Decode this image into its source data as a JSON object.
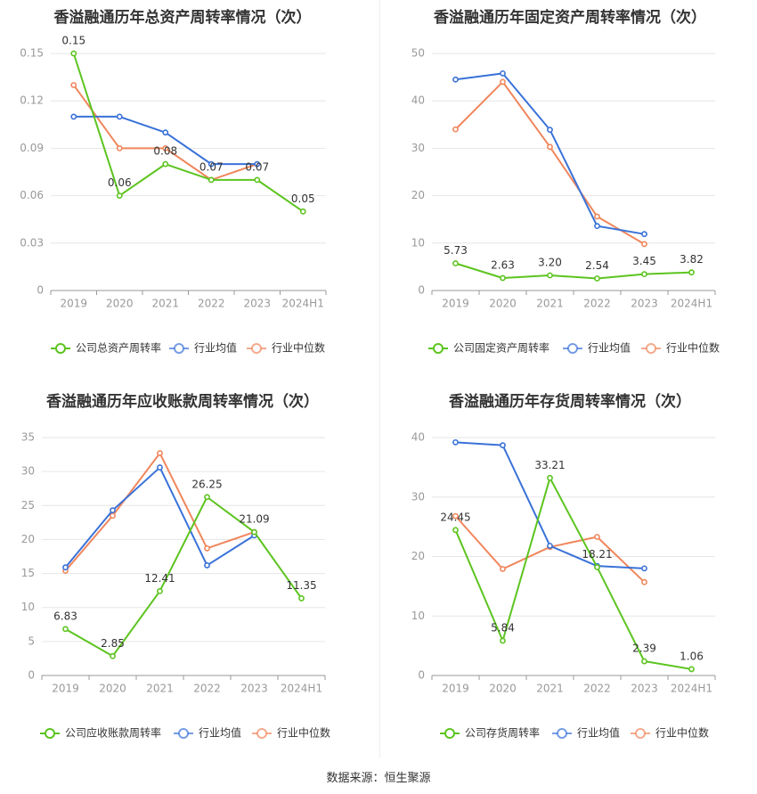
{
  "source": "数据来源：恒生聚源",
  "colors": {
    "company": "#5cc41f",
    "avg": "#3a72d8",
    "median": "#f0865c",
    "axis_text": "#999999",
    "grid": "#e6e6e6",
    "title": "#333333"
  },
  "chart_data": [
    {
      "type": "line",
      "title": "香溢融通历年总资产周转率情况（次）",
      "categories": [
        "2019",
        "2020",
        "2021",
        "2022",
        "2023",
        "2024H1"
      ],
      "ylim": [
        0,
        0.15
      ],
      "yticks": [
        "0",
        "0.03",
        "0.06",
        "0.09",
        "0.12",
        "0.15"
      ],
      "tick_values": [
        0,
        0.03,
        0.06,
        0.09,
        0.12,
        0.15
      ],
      "series": [
        {
          "name": "公司总资产周转率",
          "values": [
            0.15,
            0.06,
            0.08,
            0.07,
            0.07,
            0.05
          ],
          "labels": [
            "0.15",
            "0.06",
            "0.08",
            "0.07",
            "0.07",
            "0.05"
          ]
        },
        {
          "name": "行业均值",
          "values": [
            0.11,
            0.11,
            0.1,
            0.08,
            0.08,
            null
          ]
        },
        {
          "name": "行业中位数",
          "values": [
            0.13,
            0.09,
            0.09,
            0.07,
            0.08,
            null
          ]
        }
      ]
    },
    {
      "type": "line",
      "title": "香溢融通历年固定资产周转率情况（次）",
      "categories": [
        "2019",
        "2020",
        "2021",
        "2022",
        "2023",
        "2024H1"
      ],
      "ylim": [
        0,
        50
      ],
      "yticks": [
        "0",
        "10",
        "20",
        "30",
        "40",
        "50"
      ],
      "tick_values": [
        0,
        10,
        20,
        30,
        40,
        50
      ],
      "series": [
        {
          "name": "公司固定资产周转率",
          "values": [
            5.73,
            2.63,
            3.2,
            2.54,
            3.45,
            3.82
          ],
          "labels": [
            "5.73",
            "2.63",
            "3.20",
            "2.54",
            "3.45",
            "3.82"
          ]
        },
        {
          "name": "行业均值",
          "values": [
            44.5,
            45.8,
            33.9,
            13.6,
            11.9,
            null
          ]
        },
        {
          "name": "行业中位数",
          "values": [
            34.0,
            44.0,
            30.3,
            15.6,
            9.8,
            null
          ]
        }
      ]
    },
    {
      "type": "line",
      "title": "香溢融通历年应收账款周转率情况（次）",
      "categories": [
        "2019",
        "2020",
        "2021",
        "2022",
        "2023",
        "2024H1"
      ],
      "ylim": [
        0,
        35
      ],
      "yticks": [
        "0",
        "5",
        "10",
        "15",
        "20",
        "25",
        "30",
        "35"
      ],
      "tick_values": [
        0,
        5,
        10,
        15,
        20,
        25,
        30,
        35
      ],
      "series": [
        {
          "name": "公司应收账款周转率",
          "values": [
            6.83,
            2.85,
            12.41,
            26.25,
            21.09,
            11.35
          ],
          "labels": [
            "6.83",
            "2.85",
            "12.41",
            "26.25",
            "21.09",
            "11.35"
          ]
        },
        {
          "name": "行业均值",
          "values": [
            15.9,
            24.3,
            30.6,
            16.2,
            20.6,
            null
          ]
        },
        {
          "name": "行业中位数",
          "values": [
            15.4,
            23.5,
            32.7,
            18.7,
            21.1,
            null
          ]
        }
      ]
    },
    {
      "type": "line",
      "title": "香溢融通历年存货周转率情况（次）",
      "categories": [
        "2019",
        "2020",
        "2021",
        "2022",
        "2023",
        "2024H1"
      ],
      "ylim": [
        0,
        40
      ],
      "yticks": [
        "0",
        "10",
        "20",
        "30",
        "40"
      ],
      "tick_values": [
        0,
        10,
        20,
        30,
        40
      ],
      "series": [
        {
          "name": "公司存货周转率",
          "values": [
            24.45,
            5.84,
            33.21,
            18.21,
            2.39,
            1.06
          ],
          "labels": [
            "24.45",
            "5.84",
            "33.21",
            "18.21",
            "2.39",
            "1.06"
          ]
        },
        {
          "name": "行业均值",
          "values": [
            39.2,
            38.7,
            21.8,
            18.4,
            18.0,
            null
          ]
        },
        {
          "name": "行业中位数",
          "values": [
            26.8,
            17.9,
            21.6,
            23.3,
            15.7,
            null
          ]
        }
      ]
    }
  ]
}
